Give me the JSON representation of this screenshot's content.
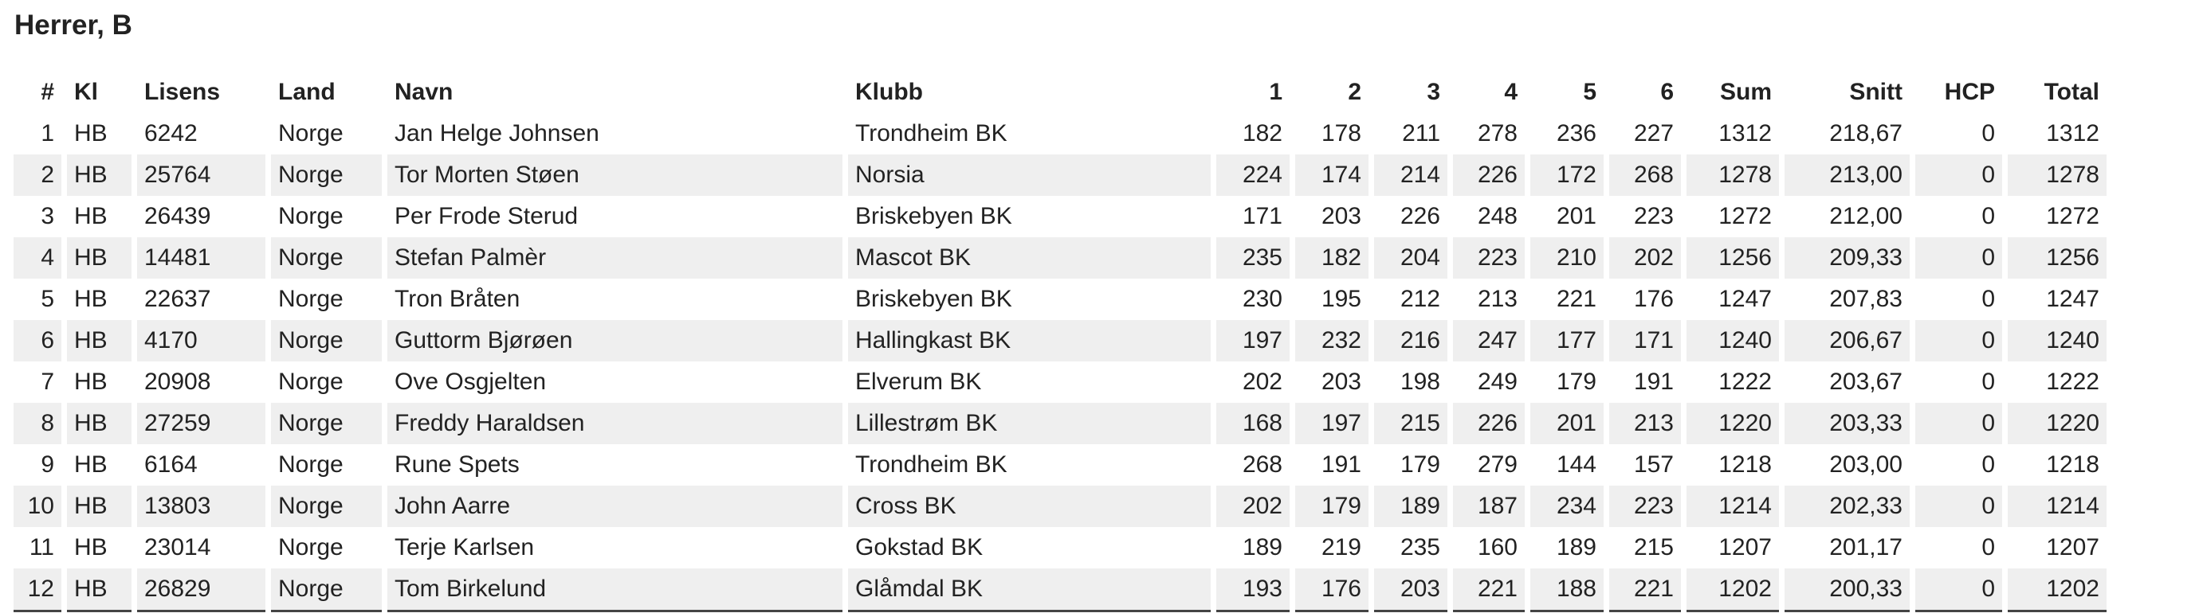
{
  "header": {
    "title": "Herrer, B"
  },
  "table": {
    "headers": [
      "#",
      "Kl",
      "Lisens",
      "Land",
      "Navn",
      "Klubb",
      "1",
      "2",
      "3",
      "4",
      "5",
      "6",
      "Sum",
      "Snitt",
      "HCP",
      "Total"
    ],
    "rows": [
      [
        "1",
        "HB",
        "6242",
        "Norge",
        "Jan Helge Johnsen",
        "Trondheim BK",
        "182",
        "178",
        "211",
        "278",
        "236",
        "227",
        "1312",
        "218,67",
        "0",
        "1312"
      ],
      [
        "2",
        "HB",
        "25764",
        "Norge",
        "Tor Morten Støen",
        "Norsia",
        "224",
        "174",
        "214",
        "226",
        "172",
        "268",
        "1278",
        "213,00",
        "0",
        "1278"
      ],
      [
        "3",
        "HB",
        "26439",
        "Norge",
        "Per Frode Sterud",
        "Briskebyen BK",
        "171",
        "203",
        "226",
        "248",
        "201",
        "223",
        "1272",
        "212,00",
        "0",
        "1272"
      ],
      [
        "4",
        "HB",
        "14481",
        "Norge",
        "Stefan Palmèr",
        "Mascot BK",
        "235",
        "182",
        "204",
        "223",
        "210",
        "202",
        "1256",
        "209,33",
        "0",
        "1256"
      ],
      [
        "5",
        "HB",
        "22637",
        "Norge",
        "Tron Bråten",
        "Briskebyen BK",
        "230",
        "195",
        "212",
        "213",
        "221",
        "176",
        "1247",
        "207,83",
        "0",
        "1247"
      ],
      [
        "6",
        "HB",
        "4170",
        "Norge",
        "Guttorm Bjørøen",
        "Hallingkast BK",
        "197",
        "232",
        "216",
        "247",
        "177",
        "171",
        "1240",
        "206,67",
        "0",
        "1240"
      ],
      [
        "7",
        "HB",
        "20908",
        "Norge",
        "Ove Osgjelten",
        "Elverum BK",
        "202",
        "203",
        "198",
        "249",
        "179",
        "191",
        "1222",
        "203,67",
        "0",
        "1222"
      ],
      [
        "8",
        "HB",
        "27259",
        "Norge",
        "Freddy Haraldsen",
        "Lillestrøm BK",
        "168",
        "197",
        "215",
        "226",
        "201",
        "213",
        "1220",
        "203,33",
        "0",
        "1220"
      ],
      [
        "9",
        "HB",
        "6164",
        "Norge",
        "Rune Spets",
        "Trondheim BK",
        "268",
        "191",
        "179",
        "279",
        "144",
        "157",
        "1218",
        "203,00",
        "0",
        "1218"
      ],
      [
        "10",
        "HB",
        "13803",
        "Norge",
        "John Aarre",
        "Cross BK",
        "202",
        "179",
        "189",
        "187",
        "234",
        "223",
        "1214",
        "202,33",
        "0",
        "1214"
      ],
      [
        "11",
        "HB",
        "23014",
        "Norge",
        "Terje Karlsen",
        "Gokstad BK",
        "189",
        "219",
        "235",
        "160",
        "189",
        "215",
        "1207",
        "201,17",
        "0",
        "1207"
      ],
      [
        "12",
        "HB",
        "26829",
        "Norge",
        "Tom Birkelund",
        "Glåmdal BK",
        "193",
        "176",
        "203",
        "221",
        "188",
        "221",
        "1202",
        "200,33",
        "0",
        "1202"
      ]
    ]
  }
}
